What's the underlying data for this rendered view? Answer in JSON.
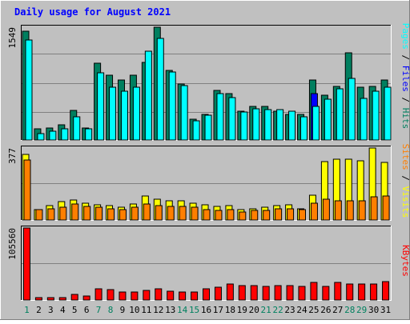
{
  "chart_data": {
    "type": "bar",
    "title": "Daily usage for August 2021",
    "categories": [
      "1",
      "2",
      "3",
      "4",
      "5",
      "6",
      "7",
      "8",
      "9",
      "10",
      "11",
      "12",
      "13",
      "14",
      "15",
      "16",
      "17",
      "18",
      "19",
      "20",
      "21",
      "22",
      "23",
      "24",
      "25",
      "26",
      "27",
      "28",
      "29",
      "30",
      "31"
    ],
    "weekend_days": [
      "1",
      "7",
      "8",
      "14",
      "15",
      "21",
      "22",
      "28",
      "29"
    ],
    "panels": [
      {
        "id": "top",
        "max_label": "1549",
        "ylim": [
          0,
          1549
        ],
        "legend": [
          "Pages",
          "Files",
          "Hits"
        ],
        "series": [
          {
            "name": "Hits",
            "color": "#007f5f",
            "values": [
              1490,
              150,
              170,
              210,
              410,
              170,
              1050,
              890,
              820,
              890,
              1070,
              1549,
              960,
              770,
              290,
              350,
              680,
              640,
              400,
              460,
              460,
              400,
              350,
              350,
              820,
              610,
              740,
              1200,
              720,
              740,
              820
            ]
          },
          {
            "name": "Files",
            "color": "#0000ff",
            "values": [
              0,
              0,
              0,
              0,
              0,
              0,
              0,
              0,
              0,
              0,
              0,
              0,
              0,
              0,
              0,
              0,
              0,
              0,
              0,
              0,
              0,
              0,
              0,
              0,
              640,
              0,
              0,
              0,
              0,
              0,
              0
            ]
          },
          {
            "name": "Pages",
            "color": "#00ffff",
            "values": [
              1370,
              90,
              120,
              150,
              320,
              150,
              920,
              730,
              670,
              720,
              1220,
              1400,
              930,
              750,
              260,
              340,
              640,
              580,
              380,
              430,
              420,
              420,
              400,
              320,
              460,
              560,
              700,
              850,
              570,
              670,
              720
            ]
          }
        ]
      },
      {
        "id": "middle",
        "max_label": "377",
        "ylim": [
          0,
          377
        ],
        "legend": [
          "Sites",
          "Visits"
        ],
        "series": [
          {
            "name": "Visits",
            "color": "#ffff00",
            "values": [
              345,
              55,
              75,
              95,
              105,
              90,
              80,
              75,
              65,
              85,
              125,
              110,
              100,
              100,
              90,
              80,
              70,
              75,
              55,
              60,
              65,
              75,
              80,
              60,
              130,
              305,
              320,
              320,
              310,
              377,
              300
            ]
          },
          {
            "name": "Sites",
            "color": "#ff7f00",
            "values": [
              315,
              55,
              60,
              65,
              85,
              70,
              65,
              60,
              55,
              65,
              85,
              75,
              70,
              70,
              65,
              55,
              50,
              55,
              40,
              50,
              50,
              60,
              60,
              55,
              90,
              110,
              100,
              100,
              100,
              120,
              125
            ]
          }
        ]
      },
      {
        "id": "bottom",
        "max_label": "105560",
        "ylim": [
          0,
          105560
        ],
        "legend": [
          "KBytes"
        ],
        "series": [
          {
            "name": "KBytes",
            "color": "#ff0000",
            "values": [
              105560,
              3500,
              3000,
              3500,
              8500,
              5500,
              16000,
              15000,
              12000,
              12000,
              14000,
              16000,
              13000,
              12000,
              12000,
              17000,
              19000,
              24000,
              21000,
              21000,
              20000,
              21000,
              21000,
              20000,
              26000,
              20000,
              26000,
              23000,
              23000,
              23000,
              27000
            ]
          }
        ]
      }
    ]
  }
}
